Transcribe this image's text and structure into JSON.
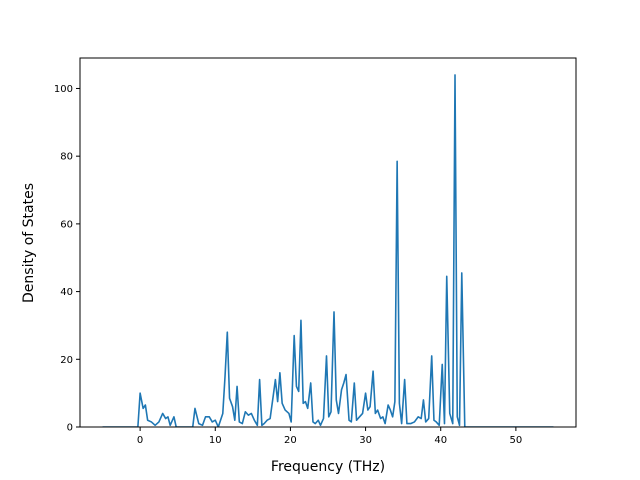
{
  "chart_data": {
    "type": "line",
    "title": "",
    "xlabel": "Frequency (THz)",
    "ylabel": "Density of States",
    "xlim": [
      -8,
      58
    ],
    "ylim": [
      0,
      109
    ],
    "xticks": [
      0,
      10,
      20,
      30,
      40,
      50
    ],
    "yticks": [
      0,
      20,
      40,
      60,
      80,
      100
    ],
    "grid": false,
    "legend": "none",
    "series": [
      {
        "color": "#1f77b4",
        "points": [
          [
            -5.0,
            0
          ],
          [
            -0.3,
            0
          ],
          [
            0.0,
            10.0
          ],
          [
            0.4,
            5.5
          ],
          [
            0.7,
            6.5
          ],
          [
            1.0,
            2.0
          ],
          [
            1.5,
            1.5
          ],
          [
            2.0,
            0.5
          ],
          [
            2.5,
            1.5
          ],
          [
            3.0,
            4.0
          ],
          [
            3.4,
            2.5
          ],
          [
            3.7,
            3.0
          ],
          [
            4.0,
            0.5
          ],
          [
            4.5,
            3.0
          ],
          [
            4.8,
            0
          ],
          [
            7.0,
            0
          ],
          [
            7.3,
            5.5
          ],
          [
            7.8,
            1.0
          ],
          [
            8.3,
            0.5
          ],
          [
            8.7,
            3.0
          ],
          [
            9.2,
            3.0
          ],
          [
            9.6,
            1.5
          ],
          [
            10.0,
            2.0
          ],
          [
            10.4,
            0
          ],
          [
            11.0,
            4.0
          ],
          [
            11.3,
            15.0
          ],
          [
            11.6,
            28.0
          ],
          [
            11.9,
            8.5
          ],
          [
            12.3,
            6.0
          ],
          [
            12.6,
            2.0
          ],
          [
            12.9,
            12.0
          ],
          [
            13.2,
            1.5
          ],
          [
            13.6,
            1.0
          ],
          [
            14.0,
            4.5
          ],
          [
            14.4,
            3.5
          ],
          [
            14.8,
            4.0
          ],
          [
            15.2,
            2.0
          ],
          [
            15.6,
            0.5
          ],
          [
            15.9,
            14.0
          ],
          [
            16.2,
            0.5
          ],
          [
            16.5,
            1.0
          ],
          [
            16.9,
            2.0
          ],
          [
            17.3,
            2.5
          ],
          [
            17.7,
            9.0
          ],
          [
            18.0,
            14.0
          ],
          [
            18.3,
            7.5
          ],
          [
            18.6,
            16.0
          ],
          [
            18.9,
            7.0
          ],
          [
            19.3,
            5.0
          ],
          [
            19.8,
            4.0
          ],
          [
            20.1,
            1.5
          ],
          [
            20.5,
            27.0
          ],
          [
            20.8,
            12.0
          ],
          [
            21.1,
            10.5
          ],
          [
            21.4,
            31.5
          ],
          [
            21.7,
            7.0
          ],
          [
            22.0,
            7.5
          ],
          [
            22.3,
            5.5
          ],
          [
            22.7,
            13.0
          ],
          [
            23.0,
            1.5
          ],
          [
            23.3,
            1.0
          ],
          [
            23.7,
            2.0
          ],
          [
            24.0,
            0.5
          ],
          [
            24.4,
            2.5
          ],
          [
            24.8,
            21.0
          ],
          [
            25.1,
            3.0
          ],
          [
            25.4,
            4.5
          ],
          [
            25.8,
            34.0
          ],
          [
            26.1,
            8.0
          ],
          [
            26.4,
            4.0
          ],
          [
            26.8,
            11.0
          ],
          [
            27.1,
            13.0
          ],
          [
            27.4,
            15.5
          ],
          [
            27.8,
            2.0
          ],
          [
            28.1,
            1.5
          ],
          [
            28.5,
            13.0
          ],
          [
            28.8,
            2.0
          ],
          [
            29.2,
            3.0
          ],
          [
            29.6,
            4.0
          ],
          [
            30.0,
            10.0
          ],
          [
            30.3,
            5.0
          ],
          [
            30.6,
            6.0
          ],
          [
            31.0,
            16.5
          ],
          [
            31.3,
            4.0
          ],
          [
            31.6,
            5.0
          ],
          [
            32.0,
            2.5
          ],
          [
            32.3,
            3.0
          ],
          [
            32.6,
            1.0
          ],
          [
            33.0,
            6.5
          ],
          [
            33.3,
            5.0
          ],
          [
            33.6,
            3.0
          ],
          [
            33.9,
            7.5
          ],
          [
            34.2,
            78.5
          ],
          [
            34.5,
            7.0
          ],
          [
            34.8,
            1.0
          ],
          [
            35.2,
            14.0
          ],
          [
            35.5,
            1.0
          ],
          [
            36.0,
            1.0
          ],
          [
            36.5,
            1.5
          ],
          [
            37.0,
            3.0
          ],
          [
            37.4,
            2.5
          ],
          [
            37.7,
            8.0
          ],
          [
            38.0,
            1.5
          ],
          [
            38.4,
            2.5
          ],
          [
            38.8,
            21.0
          ],
          [
            39.1,
            2.0
          ],
          [
            39.4,
            1.5
          ],
          [
            39.8,
            0.5
          ],
          [
            40.2,
            18.5
          ],
          [
            40.5,
            1.0
          ],
          [
            40.8,
            44.5
          ],
          [
            41.2,
            4.0
          ],
          [
            41.6,
            1.0
          ],
          [
            41.9,
            104.0
          ],
          [
            42.2,
            3.0
          ],
          [
            42.5,
            0.5
          ],
          [
            42.8,
            45.5
          ],
          [
            43.2,
            0
          ],
          [
            55.0,
            0
          ]
        ]
      }
    ]
  }
}
